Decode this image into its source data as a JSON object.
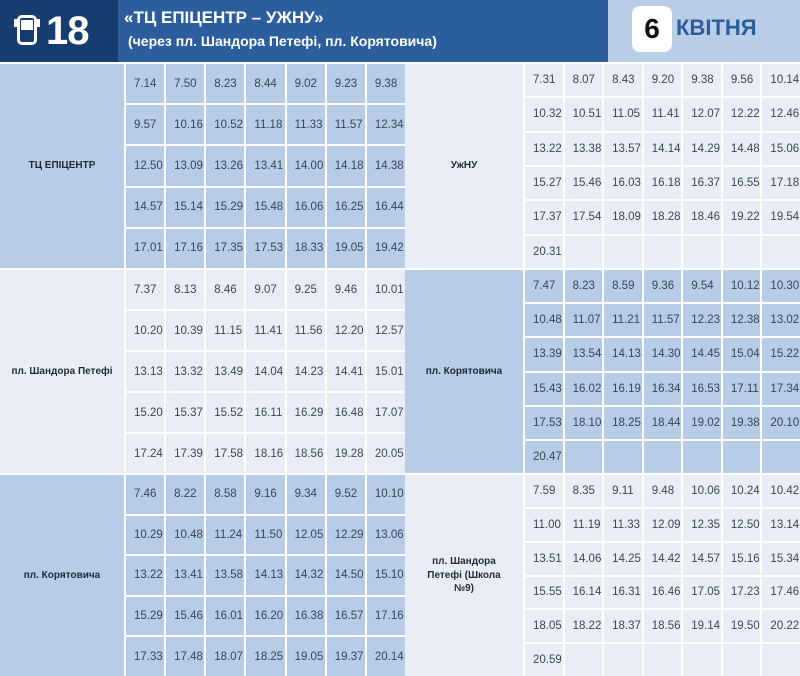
{
  "header": {
    "route_number": "18",
    "title": "«ТЦ ЕПІЦЕНТР – УЖНУ»",
    "subtitle": "(через пл. Шандора Петефі, пл. Корятовича)",
    "day": "6",
    "month": "КВІТНЯ",
    "icon": "bus-icon"
  },
  "colors": {
    "header_dark": "#173d70",
    "header": "#2c5d9c",
    "cell_blue": "#b7cce6",
    "cell_light": "#e9eef6"
  },
  "blocks": [
    {
      "stop": "ТЦ ЕПІЦЕНТР",
      "side": "left",
      "tone": "blue",
      "times": [
        [
          "7.14",
          "7.50",
          "8.23",
          "8.44",
          "9.02",
          "9.23",
          "9.38"
        ],
        [
          "9.57",
          "10.16",
          "10.52",
          "11.18",
          "11.33",
          "11.57",
          "12.34"
        ],
        [
          "12.50",
          "13.09",
          "13.26",
          "13.41",
          "14.00",
          "14.18",
          "14.38"
        ],
        [
          "14.57",
          "15.14",
          "15.29",
          "15.48",
          "16.06",
          "16.25",
          "16.44"
        ],
        [
          "17.01",
          "17.16",
          "17.35",
          "17.53",
          "18.33",
          "19.05",
          "19.42"
        ]
      ]
    },
    {
      "stop": "УжНУ",
      "side": "right",
      "tone": "light",
      "times": [
        [
          "7.31",
          "8.07",
          "8.43",
          "9.20",
          "9.38",
          "9.56",
          "10.14"
        ],
        [
          "10.32",
          "10.51",
          "11.05",
          "11.41",
          "12.07",
          "12.22",
          "12.46"
        ],
        [
          "13.22",
          "13.38",
          "13.57",
          "14.14",
          "14.29",
          "14.48",
          "15.06"
        ],
        [
          "15.27",
          "15.46",
          "16.03",
          "16.18",
          "16.37",
          "16.55",
          "17.18"
        ],
        [
          "17.37",
          "17.54",
          "18.09",
          "18.28",
          "18.46",
          "19.22",
          "19.54"
        ],
        [
          "20.31",
          "",
          "",
          "",
          "",
          "",
          ""
        ]
      ]
    },
    {
      "stop": "пл. Шандора Петефі",
      "side": "left",
      "tone": "light",
      "times": [
        [
          "7.37",
          "8.13",
          "8.46",
          "9.07",
          "9.25",
          "9.46",
          "10.01"
        ],
        [
          "10.20",
          "10.39",
          "11.15",
          "11.41",
          "11.56",
          "12.20",
          "12.57"
        ],
        [
          "13.13",
          "13.32",
          "13.49",
          "14.04",
          "14.23",
          "14.41",
          "15.01"
        ],
        [
          "15.20",
          "15.37",
          "15.52",
          "16.11",
          "16.29",
          "16.48",
          "17.07"
        ],
        [
          "17.24",
          "17.39",
          "17.58",
          "18.16",
          "18.56",
          "19.28",
          "20.05"
        ]
      ]
    },
    {
      "stop": "пл. Корятовича",
      "side": "right",
      "tone": "blue",
      "times": [
        [
          "7.47",
          "8.23",
          "8.59",
          "9.36",
          "9.54",
          "10.12",
          "10.30"
        ],
        [
          "10.48",
          "11.07",
          "11.21",
          "11.57",
          "12.23",
          "12.38",
          "13.02"
        ],
        [
          "13.39",
          "13.54",
          "14.13",
          "14.30",
          "14.45",
          "15.04",
          "15.22"
        ],
        [
          "15.43",
          "16.02",
          "16.19",
          "16.34",
          "16.53",
          "17.11",
          "17.34"
        ],
        [
          "17.53",
          "18.10",
          "18.25",
          "18.44",
          "19.02",
          "19.38",
          "20.10"
        ],
        [
          "20.47",
          "",
          "",
          "",
          "",
          "",
          ""
        ]
      ]
    },
    {
      "stop": "пл. Корятовича",
      "side": "left",
      "tone": "blue",
      "times": [
        [
          "7.46",
          "8.22",
          "8.58",
          "9.16",
          "9.34",
          "9.52",
          "10.10"
        ],
        [
          "10.29",
          "10.48",
          "11.24",
          "11.50",
          "12.05",
          "12.29",
          "13.06"
        ],
        [
          "13.22",
          "13.41",
          "13.58",
          "14.13",
          "14.32",
          "14.50",
          "15.10"
        ],
        [
          "15.29",
          "15.46",
          "16.01",
          "16.20",
          "16.38",
          "16.57",
          "17.16"
        ],
        [
          "17.33",
          "17.48",
          "18.07",
          "18.25",
          "19.05",
          "19.37",
          "20.14"
        ]
      ]
    },
    {
      "stop": "пл. Шандора Петефі (Школа №9)",
      "side": "right",
      "tone": "light",
      "times": [
        [
          "7.59",
          "8.35",
          "9.11",
          "9.48",
          "10.06",
          "10.24",
          "10.42"
        ],
        [
          "11.00",
          "11.19",
          "11.33",
          "12.09",
          "12.35",
          "12.50",
          "13.14"
        ],
        [
          "13.51",
          "14.06",
          "14.25",
          "14.42",
          "14.57",
          "15.16",
          "15.34"
        ],
        [
          "15.55",
          "16.14",
          "16.31",
          "16.46",
          "17.05",
          "17.23",
          "17.46"
        ],
        [
          "18.05",
          "18.22",
          "18.37",
          "18.56",
          "19.14",
          "19.50",
          "20.22"
        ],
        [
          "20.59",
          "",
          "",
          "",
          "",
          "",
          ""
        ]
      ]
    }
  ]
}
